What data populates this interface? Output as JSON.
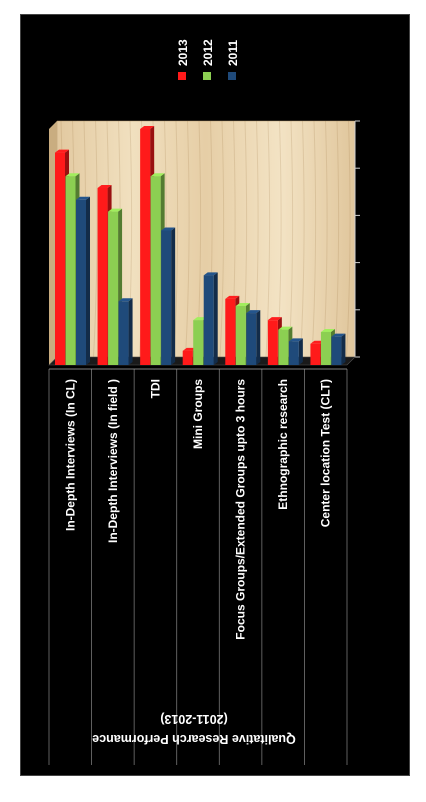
{
  "chart_data": {
    "type": "bar",
    "title": "Qualitative Research Performance",
    "subtitle": "(2011-2013)",
    "categories": [
      "In-Depth Interviews   (In CL)",
      "In-Depth Interviews (In field )",
      "TDI",
      "Mini Groups",
      "Focus Groups/Extended Groups upto 3 hours",
      "Ethnographic research",
      "Center location Test (CLT)"
    ],
    "series": [
      {
        "name": "2013",
        "color": "#ff1a1a",
        "values": [
          90,
          75,
          100,
          6,
          28,
          19,
          9
        ]
      },
      {
        "name": "2012",
        "color": "#8ccf52",
        "values": [
          80,
          65,
          80,
          19,
          25,
          15,
          14
        ]
      },
      {
        "name": "2011",
        "color": "#1f4a7a",
        "values": [
          70,
          27,
          57,
          38,
          22,
          10,
          12
        ]
      }
    ],
    "ylim": [
      0,
      100
    ],
    "grid": false,
    "legend": "top-right"
  }
}
